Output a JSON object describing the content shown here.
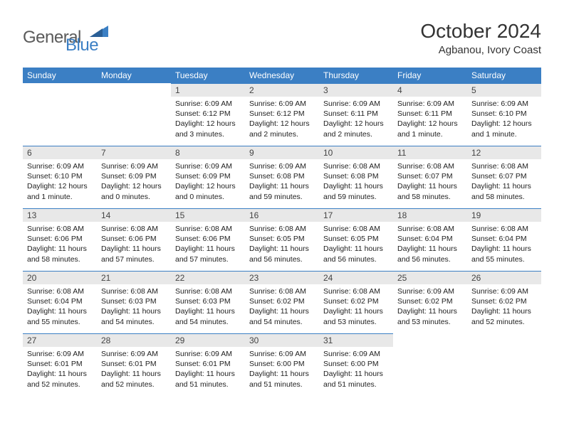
{
  "brand": {
    "part1": "General",
    "part2": "Blue"
  },
  "title": "October 2024",
  "location": "Agbanou, Ivory Coast",
  "colors": {
    "accent": "#3b7fc4",
    "header_text": "#ffffff",
    "daybar_bg": "#e8e8e8",
    "body_text": "#222222",
    "page_bg": "#ffffff",
    "logo_gray": "#5a5a5a"
  },
  "days_of_week": [
    "Sunday",
    "Monday",
    "Tuesday",
    "Wednesday",
    "Thursday",
    "Friday",
    "Saturday"
  ],
  "weeks": [
    [
      {
        "n": "",
        "sr": "",
        "ss": "",
        "dl": "",
        "empty": true
      },
      {
        "n": "",
        "sr": "",
        "ss": "",
        "dl": "",
        "empty": true
      },
      {
        "n": "1",
        "sr": "Sunrise: 6:09 AM",
        "ss": "Sunset: 6:12 PM",
        "dl": "Daylight: 12 hours and 3 minutes."
      },
      {
        "n": "2",
        "sr": "Sunrise: 6:09 AM",
        "ss": "Sunset: 6:12 PM",
        "dl": "Daylight: 12 hours and 2 minutes."
      },
      {
        "n": "3",
        "sr": "Sunrise: 6:09 AM",
        "ss": "Sunset: 6:11 PM",
        "dl": "Daylight: 12 hours and 2 minutes."
      },
      {
        "n": "4",
        "sr": "Sunrise: 6:09 AM",
        "ss": "Sunset: 6:11 PM",
        "dl": "Daylight: 12 hours and 1 minute."
      },
      {
        "n": "5",
        "sr": "Sunrise: 6:09 AM",
        "ss": "Sunset: 6:10 PM",
        "dl": "Daylight: 12 hours and 1 minute."
      }
    ],
    [
      {
        "n": "6",
        "sr": "Sunrise: 6:09 AM",
        "ss": "Sunset: 6:10 PM",
        "dl": "Daylight: 12 hours and 1 minute."
      },
      {
        "n": "7",
        "sr": "Sunrise: 6:09 AM",
        "ss": "Sunset: 6:09 PM",
        "dl": "Daylight: 12 hours and 0 minutes."
      },
      {
        "n": "8",
        "sr": "Sunrise: 6:09 AM",
        "ss": "Sunset: 6:09 PM",
        "dl": "Daylight: 12 hours and 0 minutes."
      },
      {
        "n": "9",
        "sr": "Sunrise: 6:09 AM",
        "ss": "Sunset: 6:08 PM",
        "dl": "Daylight: 11 hours and 59 minutes."
      },
      {
        "n": "10",
        "sr": "Sunrise: 6:08 AM",
        "ss": "Sunset: 6:08 PM",
        "dl": "Daylight: 11 hours and 59 minutes."
      },
      {
        "n": "11",
        "sr": "Sunrise: 6:08 AM",
        "ss": "Sunset: 6:07 PM",
        "dl": "Daylight: 11 hours and 58 minutes."
      },
      {
        "n": "12",
        "sr": "Sunrise: 6:08 AM",
        "ss": "Sunset: 6:07 PM",
        "dl": "Daylight: 11 hours and 58 minutes."
      }
    ],
    [
      {
        "n": "13",
        "sr": "Sunrise: 6:08 AM",
        "ss": "Sunset: 6:06 PM",
        "dl": "Daylight: 11 hours and 58 minutes."
      },
      {
        "n": "14",
        "sr": "Sunrise: 6:08 AM",
        "ss": "Sunset: 6:06 PM",
        "dl": "Daylight: 11 hours and 57 minutes."
      },
      {
        "n": "15",
        "sr": "Sunrise: 6:08 AM",
        "ss": "Sunset: 6:06 PM",
        "dl": "Daylight: 11 hours and 57 minutes."
      },
      {
        "n": "16",
        "sr": "Sunrise: 6:08 AM",
        "ss": "Sunset: 6:05 PM",
        "dl": "Daylight: 11 hours and 56 minutes."
      },
      {
        "n": "17",
        "sr": "Sunrise: 6:08 AM",
        "ss": "Sunset: 6:05 PM",
        "dl": "Daylight: 11 hours and 56 minutes."
      },
      {
        "n": "18",
        "sr": "Sunrise: 6:08 AM",
        "ss": "Sunset: 6:04 PM",
        "dl": "Daylight: 11 hours and 56 minutes."
      },
      {
        "n": "19",
        "sr": "Sunrise: 6:08 AM",
        "ss": "Sunset: 6:04 PM",
        "dl": "Daylight: 11 hours and 55 minutes."
      }
    ],
    [
      {
        "n": "20",
        "sr": "Sunrise: 6:08 AM",
        "ss": "Sunset: 6:04 PM",
        "dl": "Daylight: 11 hours and 55 minutes."
      },
      {
        "n": "21",
        "sr": "Sunrise: 6:08 AM",
        "ss": "Sunset: 6:03 PM",
        "dl": "Daylight: 11 hours and 54 minutes."
      },
      {
        "n": "22",
        "sr": "Sunrise: 6:08 AM",
        "ss": "Sunset: 6:03 PM",
        "dl": "Daylight: 11 hours and 54 minutes."
      },
      {
        "n": "23",
        "sr": "Sunrise: 6:08 AM",
        "ss": "Sunset: 6:02 PM",
        "dl": "Daylight: 11 hours and 54 minutes."
      },
      {
        "n": "24",
        "sr": "Sunrise: 6:08 AM",
        "ss": "Sunset: 6:02 PM",
        "dl": "Daylight: 11 hours and 53 minutes."
      },
      {
        "n": "25",
        "sr": "Sunrise: 6:09 AM",
        "ss": "Sunset: 6:02 PM",
        "dl": "Daylight: 11 hours and 53 minutes."
      },
      {
        "n": "26",
        "sr": "Sunrise: 6:09 AM",
        "ss": "Sunset: 6:02 PM",
        "dl": "Daylight: 11 hours and 52 minutes."
      }
    ],
    [
      {
        "n": "27",
        "sr": "Sunrise: 6:09 AM",
        "ss": "Sunset: 6:01 PM",
        "dl": "Daylight: 11 hours and 52 minutes."
      },
      {
        "n": "28",
        "sr": "Sunrise: 6:09 AM",
        "ss": "Sunset: 6:01 PM",
        "dl": "Daylight: 11 hours and 52 minutes."
      },
      {
        "n": "29",
        "sr": "Sunrise: 6:09 AM",
        "ss": "Sunset: 6:01 PM",
        "dl": "Daylight: 11 hours and 51 minutes."
      },
      {
        "n": "30",
        "sr": "Sunrise: 6:09 AM",
        "ss": "Sunset: 6:00 PM",
        "dl": "Daylight: 11 hours and 51 minutes."
      },
      {
        "n": "31",
        "sr": "Sunrise: 6:09 AM",
        "ss": "Sunset: 6:00 PM",
        "dl": "Daylight: 11 hours and 51 minutes."
      },
      {
        "n": "",
        "sr": "",
        "ss": "",
        "dl": "",
        "empty": true
      },
      {
        "n": "",
        "sr": "",
        "ss": "",
        "dl": "",
        "empty": true
      }
    ]
  ]
}
